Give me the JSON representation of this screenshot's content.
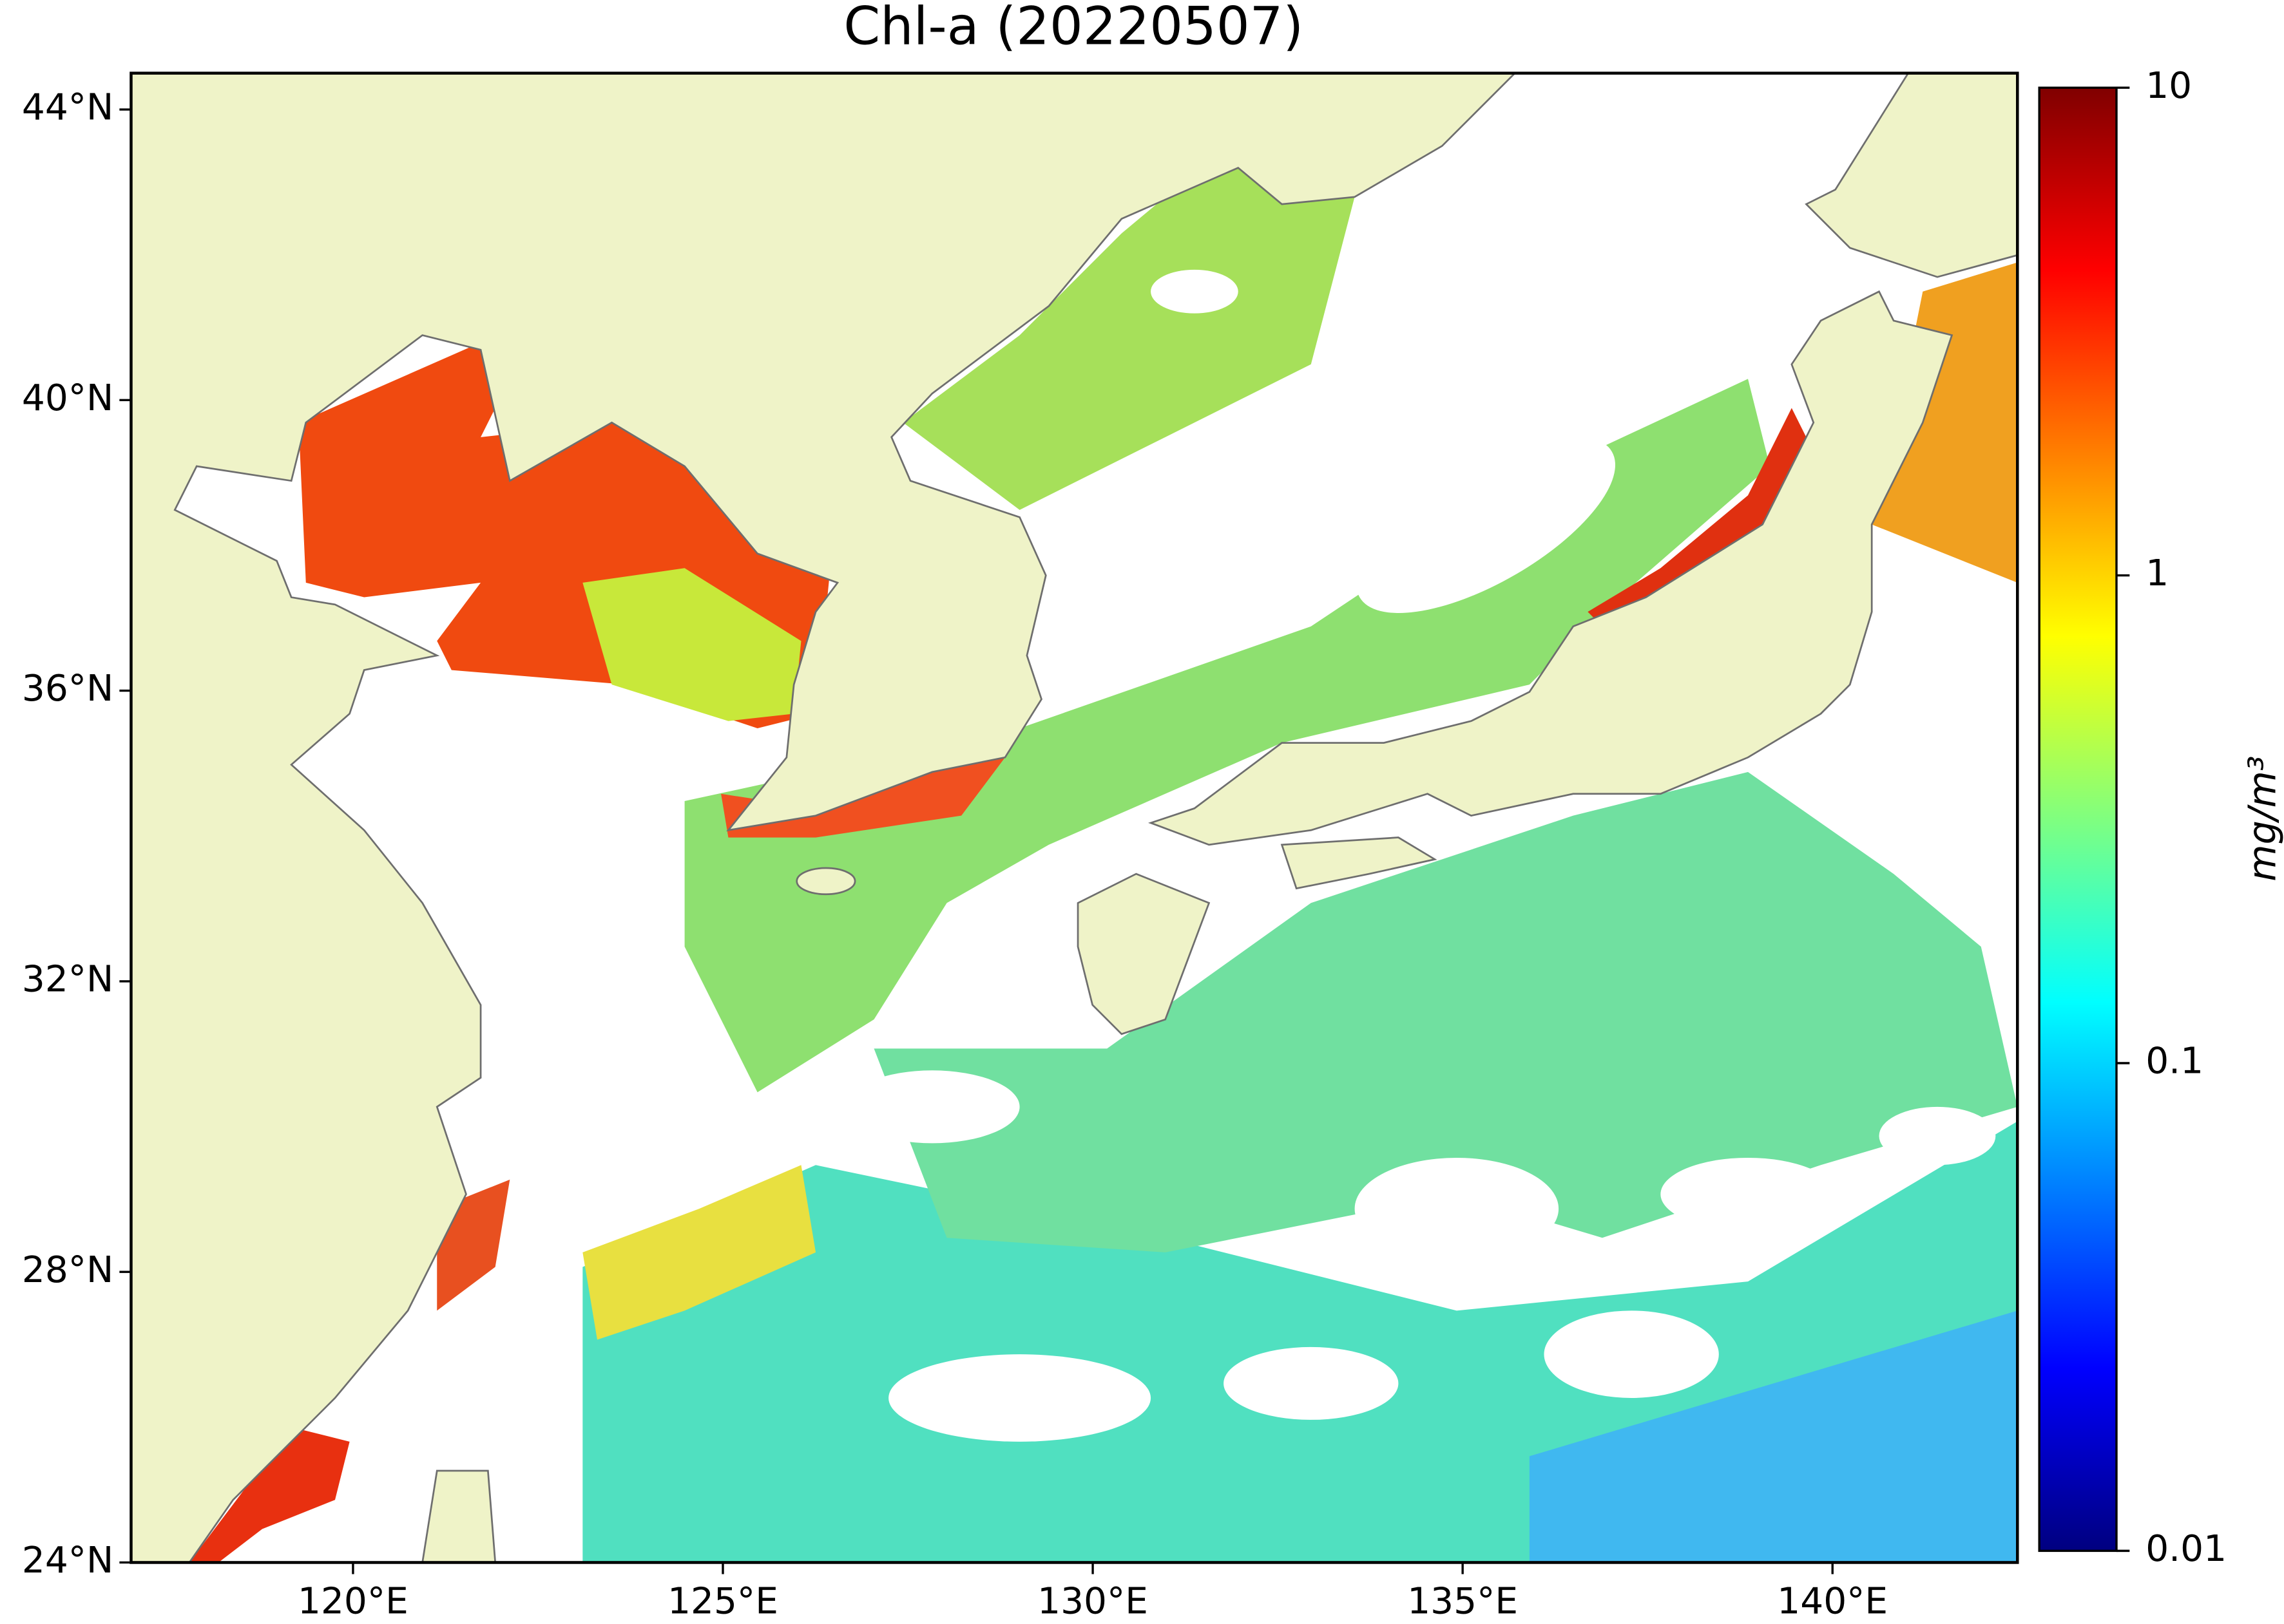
{
  "chart_data": {
    "type": "map",
    "title": "Chl-a (20220507)",
    "xlim": [
      117,
      142.5
    ],
    "ylim": [
      24,
      44.5
    ],
    "xticks": [
      {
        "value": 120,
        "label": "120°E"
      },
      {
        "value": 125,
        "label": "125°E"
      },
      {
        "value": 130,
        "label": "130°E"
      },
      {
        "value": 135,
        "label": "135°E"
      },
      {
        "value": 140,
        "label": "140°E"
      }
    ],
    "yticks": [
      {
        "value": 24,
        "label": "24°N"
      },
      {
        "value": 28,
        "label": "28°N"
      },
      {
        "value": 32,
        "label": "32°N"
      },
      {
        "value": 36,
        "label": "36°N"
      },
      {
        "value": 40,
        "label": "40°N"
      },
      {
        "value": 44,
        "label": "44°N"
      }
    ],
    "colorbar": {
      "label": "mg/m³",
      "clim": [
        0.01,
        10
      ],
      "log_scale": true,
      "colormap": "jet",
      "ticks": [
        0.01,
        0.1,
        1,
        10
      ]
    }
  }
}
